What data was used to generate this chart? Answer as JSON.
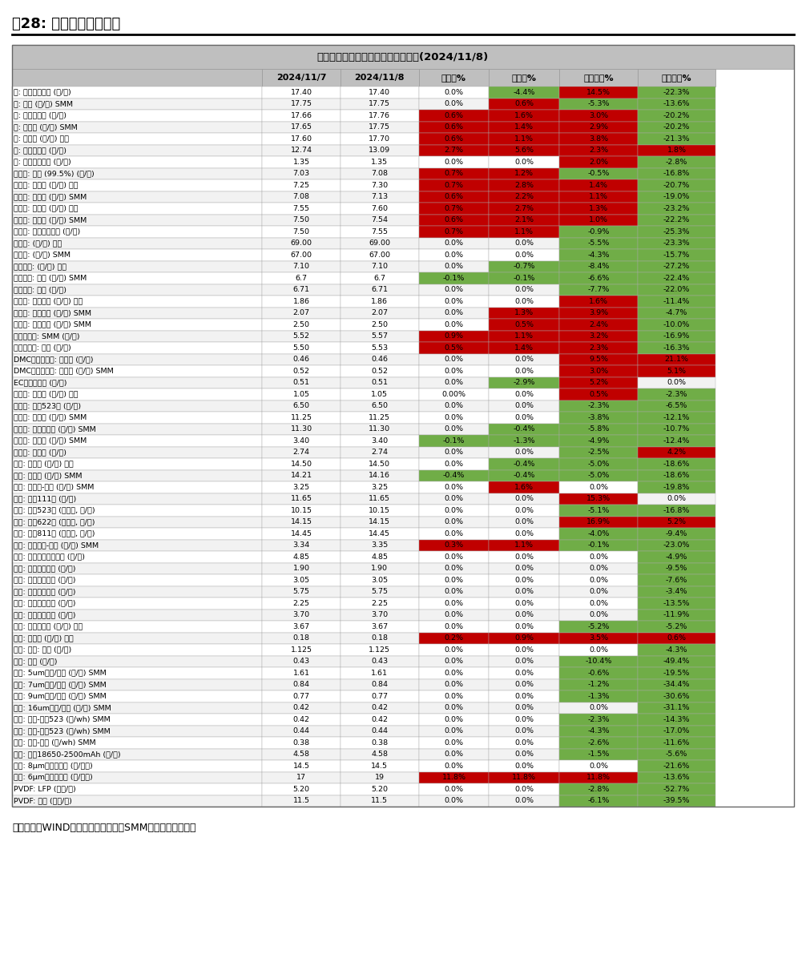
{
  "title": "【东吴电新】锂电材料价格每日涨跌(2024/11/8)",
  "figure_title": "图28: 锂电材料价格情况",
  "footer": "数据来源：WIND、鑫椤资讯、百川、SMM、东吴证券研究所",
  "headers": [
    "",
    "2024/11/7",
    "2024/11/8",
    "日环比%",
    "周环比%",
    "月初环比%",
    "年初环比%"
  ],
  "rows": [
    [
      "钴: 长江有色市场 (万/吨)",
      "17.40",
      "17.40",
      "0.0%",
      "-4.4%",
      "14.5%",
      "-22.3%"
    ],
    [
      "钴: 钴粉 (万/吨) SMM",
      "17.75",
      "17.75",
      "0.0%",
      "0.6%",
      "-5.3%",
      "-13.6%"
    ],
    [
      "钴: 金川赞比亚 (万/吨)",
      "17.66",
      "17.76",
      "0.6%",
      "1.6%",
      "3.0%",
      "-20.2%"
    ],
    [
      "钴: 电解钴 (万/吨) SMM",
      "17.65",
      "17.75",
      "0.6%",
      "1.4%",
      "2.9%",
      "-20.2%"
    ],
    [
      "钴: 金属钴 (万/吨) 百川",
      "17.60",
      "17.70",
      "0.6%",
      "1.1%",
      "3.8%",
      "-21.3%"
    ],
    [
      "镍: 上海金属网 (万/吨)",
      "12.74",
      "13.09",
      "2.7%",
      "5.6%",
      "2.3%",
      "1.8%"
    ],
    [
      "锰: 长江有色市场 (万/吨)",
      "1.35",
      "1.35",
      "0.0%",
      "0.0%",
      "2.0%",
      "-2.8%"
    ],
    [
      "碳酸锂: 国产 (99.5%) (万/吨)",
      "7.03",
      "7.08",
      "0.7%",
      "1.2%",
      "-0.5%",
      "-16.8%"
    ],
    [
      "碳酸锂: 工业级 (万/吨) 百川",
      "7.25",
      "7.30",
      "0.7%",
      "2.8%",
      "1.4%",
      "-20.7%"
    ],
    [
      "碳酸锂: 工业级 (万/吨) SMM",
      "7.08",
      "7.13",
      "0.6%",
      "2.2%",
      "1.1%",
      "-19.0%"
    ],
    [
      "碳酸锂: 电池级 (万/吨) 百川",
      "7.55",
      "7.60",
      "0.7%",
      "2.7%",
      "1.3%",
      "-23.2%"
    ],
    [
      "碳酸锂: 电池级 (万/吨) SMM",
      "7.50",
      "7.54",
      "0.6%",
      "2.1%",
      "1.0%",
      "-22.2%"
    ],
    [
      "碳酸锂: 国产主流厂商 (万/吨)",
      "7.50",
      "7.55",
      "0.7%",
      "1.1%",
      "-0.9%",
      "-25.3%"
    ],
    [
      "金属锂: (万/吨) 百川",
      "69.00",
      "69.00",
      "0.0%",
      "0.0%",
      "-5.5%",
      "-23.3%"
    ],
    [
      "金属锂: (万/吨) SMM",
      "67.00",
      "67.00",
      "0.0%",
      "0.0%",
      "-4.3%",
      "-15.7%"
    ],
    [
      "氢氧化锂: (万/吨) 百川",
      "7.10",
      "7.10",
      "0.0%",
      "-0.7%",
      "-8.4%",
      "-27.2%"
    ],
    [
      "氢氧化锂: 国产 (万/吨) SMM",
      "6.7",
      "6.7",
      "-0.1%",
      "-0.1%",
      "-6.6%",
      "-22.4%"
    ],
    [
      "氢氧化锂: 国产 (万/吨)",
      "6.71",
      "6.71",
      "0.0%",
      "0.0%",
      "-7.7%",
      "-22.0%"
    ],
    [
      "电解液: 磷酸铁锂 (万/吨) 百川",
      "1.86",
      "1.86",
      "0.0%",
      "0.0%",
      "1.6%",
      "-11.4%"
    ],
    [
      "电解液: 磷酸铁锂 (万/吨) SMM",
      "2.07",
      "2.07",
      "0.0%",
      "1.3%",
      "3.9%",
      "-4.7%"
    ],
    [
      "电解液: 三元动力 (万/吨) SMM",
      "2.50",
      "2.50",
      "0.0%",
      "0.5%",
      "2.4%",
      "-10.0%"
    ],
    [
      "六氟磷酸锂: SMM (万/吨)",
      "5.52",
      "5.57",
      "0.9%",
      "1.1%",
      "3.2%",
      "-16.9%"
    ],
    [
      "六氟磷酸锂: 百川 (万/吨)",
      "5.50",
      "5.53",
      "0.5%",
      "1.4%",
      "2.3%",
      "-16.3%"
    ],
    [
      "DMC碳酸二甲酯: 工业级 (万/吨)",
      "0.46",
      "0.46",
      "0.0%",
      "0.0%",
      "9.5%",
      "21.1%"
    ],
    [
      "DMC碳酸二甲酯: 电池级 (万/吨) SMM",
      "0.52",
      "0.52",
      "0.0%",
      "0.0%",
      "3.0%",
      "5.1%"
    ],
    [
      "EC碳酸乙烯酯 (万/吨)",
      "0.51",
      "0.51",
      "0.0%",
      "-2.9%",
      "5.2%",
      "0.0%"
    ],
    [
      "前驱体: 磷酸铁 (万/吨) 百川",
      "1.05",
      "1.05",
      "0.00%",
      "0.0%",
      "0.5%",
      "-2.3%"
    ],
    [
      "前驱体: 三元523型 (万/吨)",
      "6.50",
      "6.50",
      "0.0%",
      "0.0%",
      "-2.3%",
      "-6.5%"
    ],
    [
      "前驱体: 氧化钴 (万/吨) SMM",
      "11.25",
      "11.25",
      "0.0%",
      "0.0%",
      "-3.8%",
      "-12.1%"
    ],
    [
      "前驱体: 四氧化三钴 (万/吨) SMM",
      "11.30",
      "11.30",
      "0.0%",
      "-0.4%",
      "-5.8%",
      "-10.7%"
    ],
    [
      "前驱体: 氯化钴 (万/吨) SMM",
      "3.40",
      "3.40",
      "-0.1%",
      "-1.3%",
      "-4.9%",
      "-12.4%"
    ],
    [
      "前驱体: 硫酸镍 (万/吨)",
      "2.74",
      "2.74",
      "0.0%",
      "0.0%",
      "-2.5%",
      "4.2%"
    ],
    [
      "正极: 钴酸锂 (万/吨) 百川",
      "14.50",
      "14.50",
      "0.0%",
      "-0.4%",
      "-5.0%",
      "-18.6%"
    ],
    [
      "正极: 钴酸锂 (万/吨) SMM",
      "14.21",
      "14.16",
      "-0.4%",
      "-0.4%",
      "-5.0%",
      "-18.6%"
    ],
    [
      "正极: 锰酸锂-动力 (万/吨) SMM",
      "3.25",
      "3.25",
      "0.0%",
      "1.6%",
      "0.0%",
      "-19.8%"
    ],
    [
      "正极: 三元111型 (万/吨)",
      "11.65",
      "11.65",
      "0.0%",
      "0.0%",
      "15.3%",
      "0.0%"
    ],
    [
      "正极: 三元523型 (单晶型, 万/吨)",
      "10.15",
      "10.15",
      "0.0%",
      "0.0%",
      "-5.1%",
      "-16.8%"
    ],
    [
      "正极: 三元622型 (单晶型, 万/吨)",
      "14.15",
      "14.15",
      "0.0%",
      "0.0%",
      "16.9%",
      "5.2%"
    ],
    [
      "正极: 三元811型 (单晶型, 万/吨)",
      "14.45",
      "14.45",
      "0.0%",
      "0.0%",
      "-4.0%",
      "-9.4%"
    ],
    [
      "正极: 磷酸铁锂-动力 (万/吨) SMM",
      "3.34",
      "3.35",
      "0.3%",
      "1.1%",
      "-0.1%",
      "-23.0%"
    ],
    [
      "负极: 人造石墨高端动力 (万/吨)",
      "4.85",
      "4.85",
      "0.0%",
      "0.0%",
      "0.0%",
      "-4.9%"
    ],
    [
      "负极: 人造石墨低端 (万/吨)",
      "1.90",
      "1.90",
      "0.0%",
      "0.0%",
      "0.0%",
      "-9.5%"
    ],
    [
      "负极: 人造石墨中端 (万/吨)",
      "3.05",
      "3.05",
      "0.0%",
      "0.0%",
      "0.0%",
      "-7.6%"
    ],
    [
      "负极: 天然石墨高端 (万/吨)",
      "5.75",
      "5.75",
      "0.0%",
      "0.0%",
      "0.0%",
      "-3.4%"
    ],
    [
      "负极: 天然石墨低端 (万/吨)",
      "2.25",
      "2.25",
      "0.0%",
      "0.0%",
      "0.0%",
      "-13.5%"
    ],
    [
      "负极: 天然石墨中端 (万/吨)",
      "3.70",
      "3.70",
      "0.0%",
      "0.0%",
      "0.0%",
      "-11.9%"
    ],
    [
      "负极: 碳负极材料 (万/吨) 百川",
      "3.67",
      "3.67",
      "0.0%",
      "0.0%",
      "-5.2%",
      "-5.2%"
    ],
    [
      "负极: 石油焦 (万/吨) 百川",
      "0.18",
      "0.18",
      "0.2%",
      "0.9%",
      "3.5%",
      "0.6%"
    ],
    [
      "隔膜: 湿法: 百川 (元/平)",
      "1.125",
      "1.125",
      "0.0%",
      "0.0%",
      "0.0%",
      "-4.3%"
    ],
    [
      "隔膜: 干法 (元/平)",
      "0.43",
      "0.43",
      "0.0%",
      "0.0%",
      "-10.4%",
      "-49.4%"
    ],
    [
      "隔膜: 5um湿法/国产 (元/平) SMM",
      "1.61",
      "1.61",
      "0.0%",
      "0.0%",
      "-0.6%",
      "-19.5%"
    ],
    [
      "隔膜: 7um湿法/国产 (元/平) SMM",
      "0.84",
      "0.84",
      "0.0%",
      "0.0%",
      "-1.2%",
      "-34.4%"
    ],
    [
      "隔膜: 9um湿法/国产 (元/平) SMM",
      "0.77",
      "0.77",
      "0.0%",
      "0.0%",
      "-1.3%",
      "-30.6%"
    ],
    [
      "隔膜: 16um干法/国产 (元/平) SMM",
      "0.42",
      "0.42",
      "0.0%",
      "0.0%",
      "0.0%",
      "-31.1%"
    ],
    [
      "电池: 方形-三元523 (元/wh) SMM",
      "0.42",
      "0.42",
      "0.0%",
      "0.0%",
      "-2.3%",
      "-14.3%"
    ],
    [
      "电池: 软包-三元523 (元/wh) SMM",
      "0.44",
      "0.44",
      "0.0%",
      "0.0%",
      "-4.3%",
      "-17.0%"
    ],
    [
      "电池: 方形-铁锂 (元/wh) SMM",
      "0.38",
      "0.38",
      "0.0%",
      "0.0%",
      "-2.6%",
      "-11.6%"
    ],
    [
      "电池: 圆柱18650-2500mAh (元/支)",
      "4.58",
      "4.58",
      "0.0%",
      "0.0%",
      "-1.5%",
      "-5.6%"
    ],
    [
      "铜箔: 8μm国产加工费 (元/公斤)",
      "14.5",
      "14.5",
      "0.0%",
      "0.0%",
      "0.0%",
      "-21.6%"
    ],
    [
      "铜箔: 6μm国产加工费 (元/公斤)",
      "17",
      "19",
      "11.8%",
      "11.8%",
      "11.8%",
      "-13.6%"
    ],
    [
      "PVDF: LFP (万元/吨)",
      "5.20",
      "5.20",
      "0.0%",
      "0.0%",
      "-2.8%",
      "-52.7%"
    ],
    [
      "PVDF: 三元 (万元/吨)",
      "11.5",
      "11.5",
      "0.0%",
      "0.0%",
      "-6.1%",
      "-39.5%"
    ]
  ],
  "col_colors": {
    "日环比%_pos": "#c00000",
    "日环比%_neg": "#70ad47",
    "周环比%_pos": "#c00000",
    "周环比%_neg": "#70ad47",
    "月初环比%_pos": "#c00000",
    "月初环比%_neg": "#70ad47",
    "年初环比%_pos": "#c00000",
    "年初环比%_neg": "#70ad47"
  },
  "header_bg": "#bfbfbf",
  "title_bg": "#bfbfbf",
  "row_bg_odd": "#ffffff",
  "row_bg_even": "#f2f2f2",
  "grid_color": "#999999"
}
